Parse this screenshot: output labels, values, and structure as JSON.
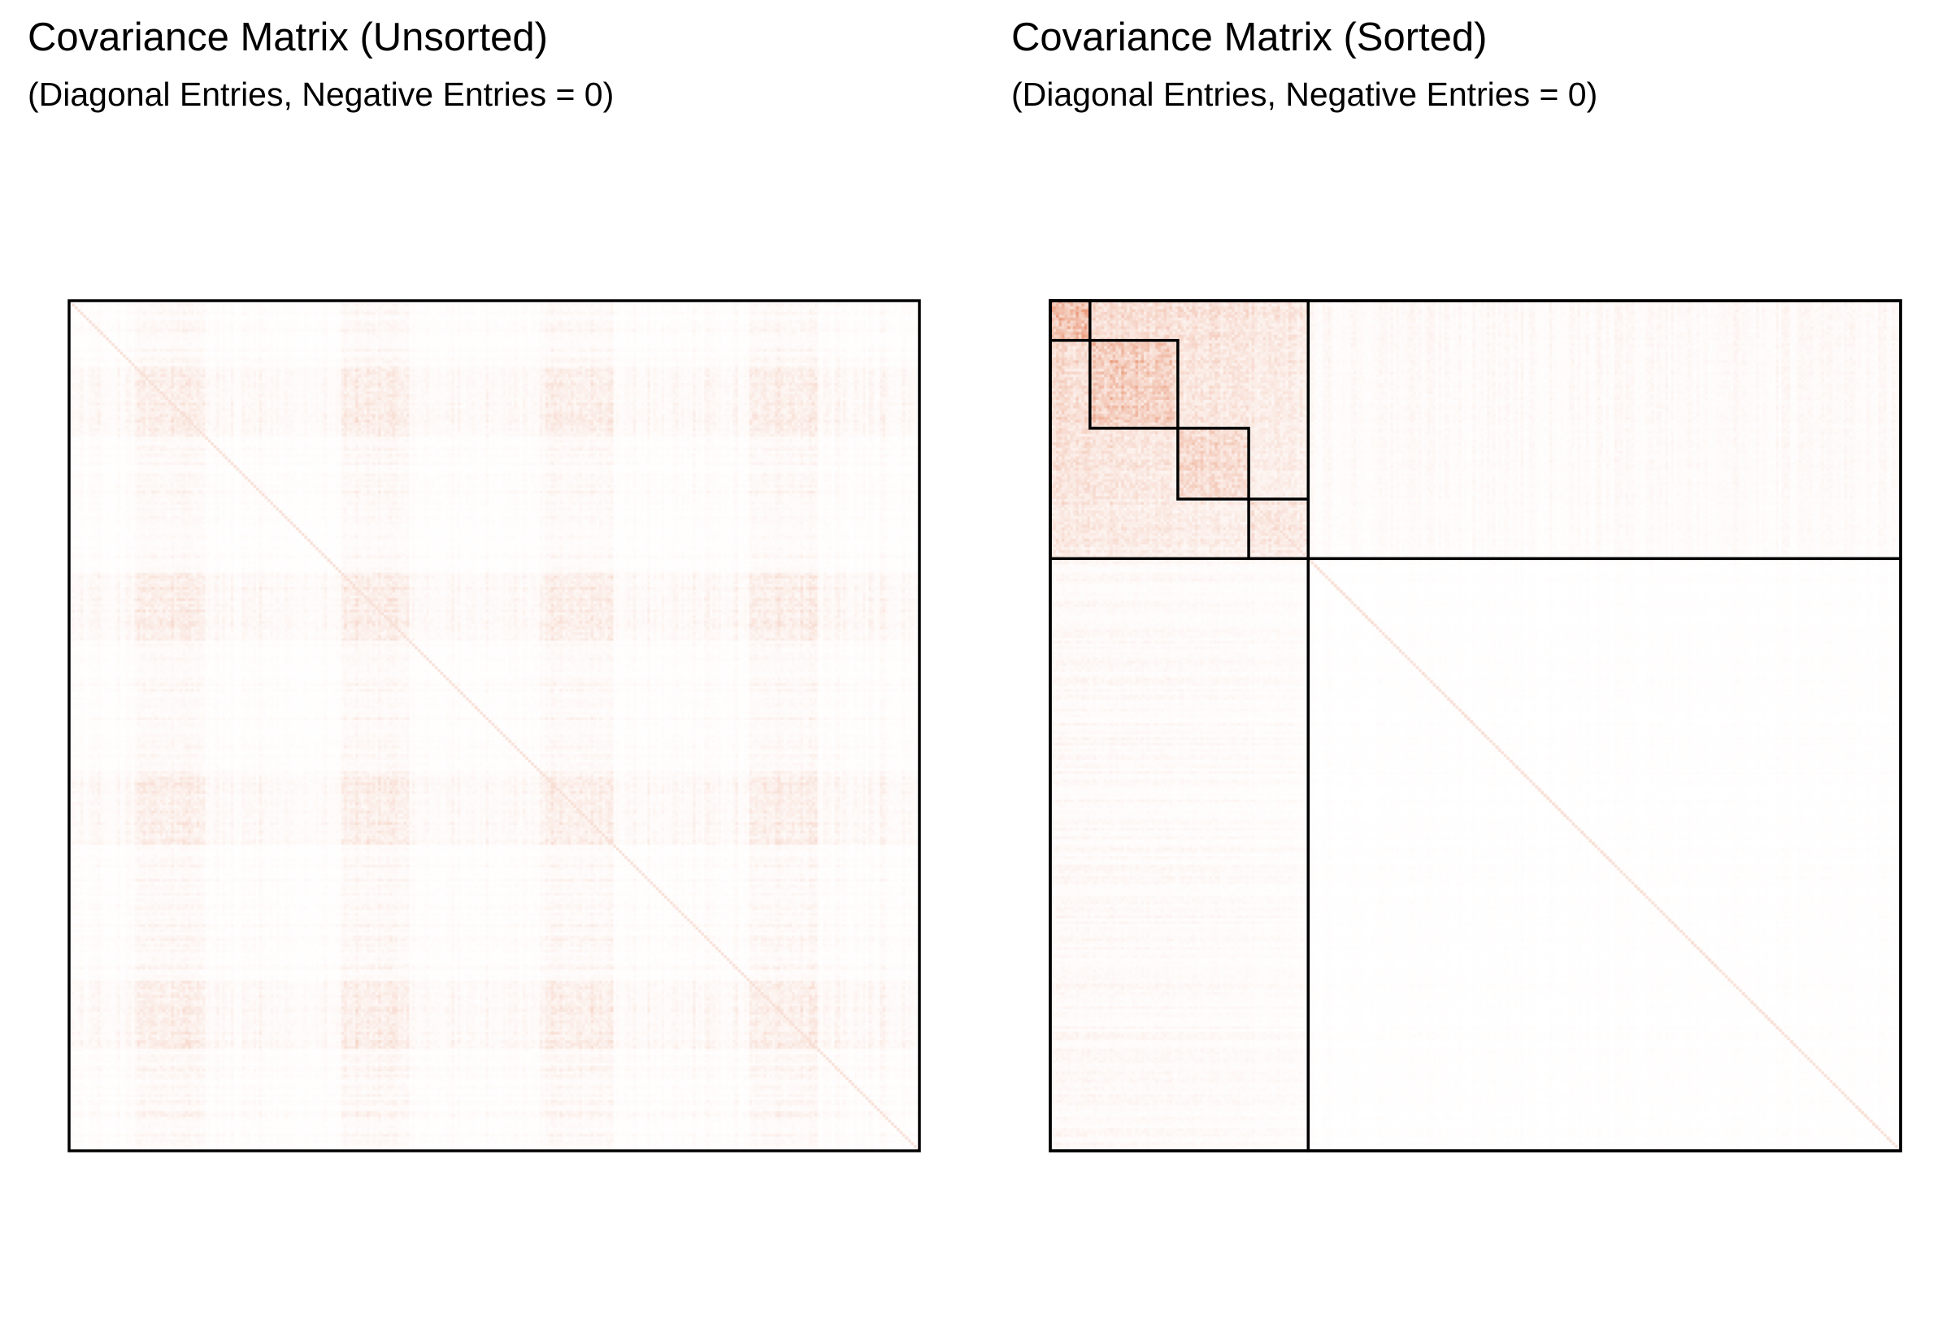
{
  "chart_data": [
    {
      "type": "heatmap",
      "title": "Covariance Matrix (Unsorted)",
      "subtitle": "(Diagonal Entries, Negative Entries = 0)",
      "xlabel": "",
      "ylabel": "",
      "grid": false,
      "legend": "none",
      "matrix_size": 300,
      "color_low": "#ffffff",
      "color_high": "#d9480f",
      "sorted": false,
      "block_boundaries": []
    },
    {
      "type": "heatmap",
      "title": "Covariance Matrix (Sorted)",
      "subtitle": "(Diagonal Entries, Negative Entries = 0)",
      "xlabel": "",
      "ylabel": "",
      "grid": false,
      "legend": "none",
      "matrix_size": 300,
      "color_low": "#ffffff",
      "color_high": "#d9480f",
      "sorted": true,
      "block_boundaries": [
        0,
        14,
        45,
        70,
        91,
        300
      ],
      "outer_block_end": 91
    }
  ]
}
